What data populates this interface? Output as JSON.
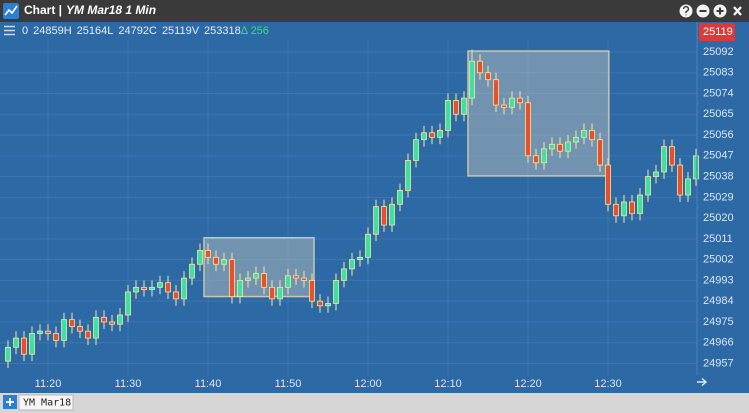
{
  "chart_data": {
    "type": "candlestick",
    "title": "Chart |",
    "subtitle": "YM Mar18 1 Min",
    "info": [
      "0",
      "24859H",
      "25164L",
      "24792C",
      "25119V",
      "253318"
    ],
    "delta": "Δ 256",
    "last_price": 25119,
    "tab": "YM Mar18",
    "categories": [
      null,
      null,
      null,
      null,
      null,
      "11:20",
      null,
      null,
      null,
      null,
      null,
      null,
      null,
      null,
      null,
      "11:30",
      null,
      null,
      null,
      null,
      null,
      null,
      null,
      null,
      null,
      "11:40",
      null,
      null,
      null,
      null,
      null,
      null,
      null,
      null,
      null,
      "11:50",
      null,
      null,
      null,
      null,
      null,
      null,
      null,
      null,
      null,
      "12:00",
      null,
      null,
      null,
      null,
      null,
      null,
      null,
      null,
      null,
      "12:10",
      null,
      null,
      null,
      null,
      null,
      null,
      null,
      null,
      null,
      "12:20",
      null,
      null,
      null,
      null,
      null,
      null,
      null,
      null,
      null,
      "12:30",
      null,
      null,
      null,
      null,
      null,
      null,
      null,
      null,
      null,
      null,
      null
    ],
    "open": [
      24958,
      24964,
      24968,
      24961,
      24970,
      24971,
      24970,
      24967,
      24976,
      24973,
      24971,
      24968,
      24977,
      24975,
      24974,
      24978,
      24988,
      24990,
      24989,
      24990,
      24992,
      24988,
      24985,
      24994,
      25000,
      25006,
      25003,
      25000,
      25002,
      24986,
      24993,
      24994,
      24996,
      24990,
      24985,
      24990,
      24995,
      24994,
      24993,
      24984,
      24982,
      24983,
      24993,
      24998,
      25002,
      25003,
      25013,
      25025,
      25017,
      25026,
      25032,
      25045,
      25054,
      25057,
      25055,
      25058,
      25071,
      25065,
      25072,
      25088,
      25083,
      25080,
      25069,
      25068,
      25072,
      25070,
      25047,
      25044,
      25050,
      25052,
      25049,
      25053,
      25055,
      25058,
      25054,
      25043,
      25026,
      25021,
      25027,
      25022,
      25030,
      25038,
      25040,
      25051,
      25043,
      25030,
      25037
    ],
    "high": [
      24967,
      24971,
      24971,
      24973,
      24974,
      24974,
      24973,
      24979,
      24979,
      24976,
      24974,
      24980,
      24980,
      24978,
      24981,
      24991,
      24993,
      24993,
      24993,
      24995,
      24995,
      24991,
      24997,
      25003,
      25009,
      25009,
      25006,
      25005,
      25005,
      24996,
      24997,
      24999,
      24999,
      24993,
      24993,
      24998,
      24998,
      24997,
      24996,
      24987,
      24986,
      24996,
      25001,
      25005,
      25006,
      25016,
      25028,
      25028,
      25029,
      25035,
      25048,
      25057,
      25060,
      25060,
      25061,
      25074,
      25074,
      25075,
      25093,
      25091,
      25086,
      25083,
      25072,
      25075,
      25075,
      25073,
      25050,
      25053,
      25055,
      25055,
      25056,
      25058,
      25061,
      25061,
      25057,
      25046,
      25029,
      25030,
      25030,
      25033,
      25041,
      25043,
      25054,
      25054,
      25046,
      25040,
      25050
    ],
    "low": [
      24955,
      24961,
      24958,
      24958,
      24967,
      24967,
      24964,
      24964,
      24970,
      24968,
      24965,
      24965,
      24972,
      24971,
      24971,
      24975,
      24985,
      24986,
      24986,
      24987,
      24985,
      24982,
      24982,
      24991,
      24997,
      25000,
      24997,
      24997,
      24983,
      24983,
      24990,
      24991,
      24987,
      24982,
      24982,
      24987,
      24991,
      24990,
      24981,
      24979,
      24979,
      24980,
      24990,
      24995,
      24999,
      25000,
      25010,
      25014,
      25014,
      25023,
      25029,
      25042,
      25051,
      25052,
      25052,
      25055,
      25062,
      25062,
      25069,
      25080,
      25077,
      25066,
      25065,
      25065,
      25067,
      25044,
      25041,
      25041,
      25047,
      25046,
      25046,
      25050,
      25052,
      25051,
      25040,
      25023,
      25018,
      25018,
      25019,
      25019,
      25027,
      25035,
      25037,
      25040,
      25027,
      25027,
      25034
    ],
    "close": [
      24964,
      24968,
      24961,
      24970,
      24971,
      24970,
      24967,
      24976,
      24973,
      24971,
      24968,
      24977,
      24975,
      24974,
      24978,
      24988,
      24990,
      24989,
      24990,
      24992,
      24988,
      24985,
      24994,
      25000,
      25006,
      25003,
      25000,
      25002,
      24986,
      24993,
      24994,
      24996,
      24990,
      24985,
      24990,
      24995,
      24994,
      24993,
      24984,
      24982,
      24983,
      24993,
      24998,
      25002,
      25003,
      25013,
      25025,
      25017,
      25026,
      25032,
      25045,
      25054,
      25057,
      25055,
      25058,
      25071,
      25065,
      25072,
      25088,
      25083,
      25080,
      25069,
      25068,
      25072,
      25070,
      25047,
      25044,
      25050,
      25052,
      25049,
      25053,
      25055,
      25058,
      25054,
      25043,
      25026,
      25021,
      25027,
      25022,
      25030,
      25038,
      25040,
      25051,
      25043,
      25030,
      25037,
      25047
    ],
    "up_color": "#3fe0a0",
    "down_color": "#e8502c",
    "wick_color": "#f4e6a0",
    "ylim": [
      24952,
      25105
    ],
    "yticks": [
      24957,
      24966,
      24975,
      24984,
      24993,
      25002,
      25011,
      25020,
      25029,
      25038,
      25047,
      25056,
      25065,
      25074,
      25083,
      25092
    ],
    "grid": true,
    "rectangles": [
      {
        "x": [
          24.5,
          38.25
        ],
        "y": [
          24986,
          25011.5
        ]
      },
      {
        "x": [
          57.5,
          75.1
        ],
        "y": [
          25038.3,
          25092.4
        ]
      }
    ]
  }
}
